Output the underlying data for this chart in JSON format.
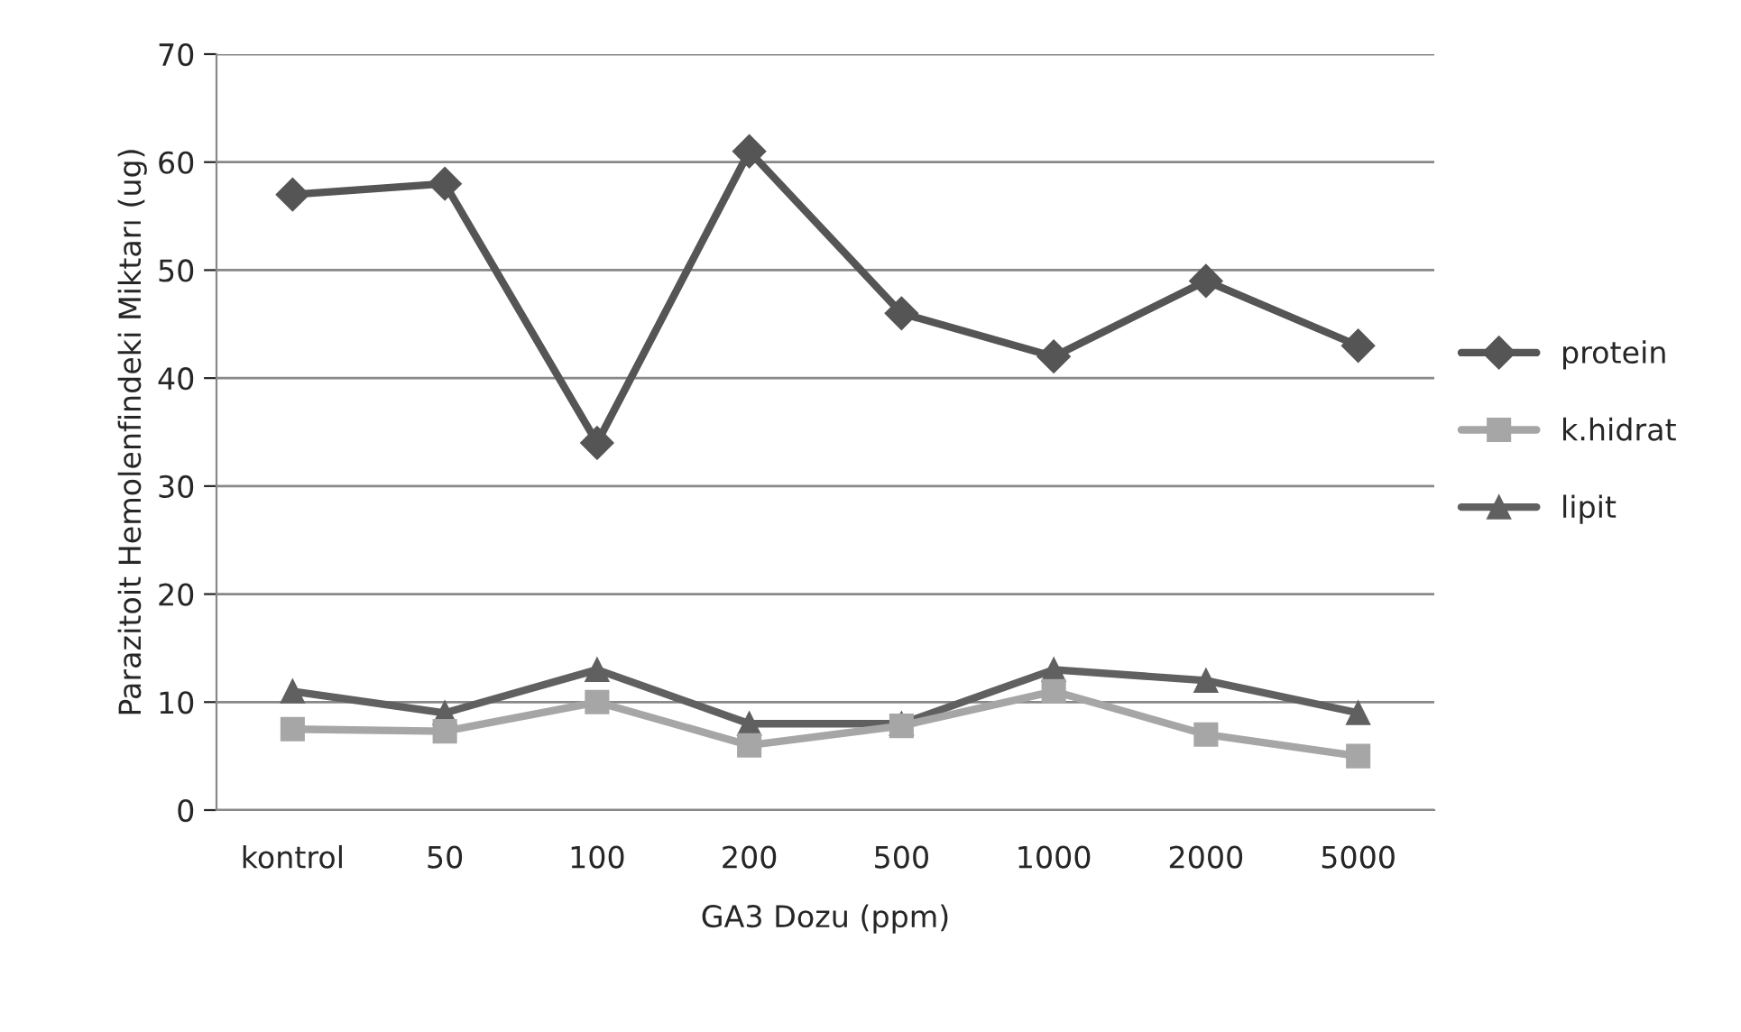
{
  "chart_data": {
    "type": "line",
    "xlabel": "GA3 Dozu (ppm)",
    "ylabel": "Parazitoit Hemolenfindeki Miktarı (ug)",
    "categories": [
      "kontrol",
      "50",
      "100",
      "200",
      "500",
      "1000",
      "2000",
      "5000"
    ],
    "series": [
      {
        "name": "protein",
        "color": "#555555",
        "marker": "diamond",
        "values": [
          57,
          58,
          34,
          61,
          46,
          42,
          49,
          43
        ]
      },
      {
        "name": "k.hidrat",
        "color": "#a6a6a6",
        "marker": "square",
        "values": [
          7.5,
          7.3,
          10,
          6,
          7.8,
          11,
          7,
          5
        ]
      },
      {
        "name": "lipit",
        "color": "#606060",
        "marker": "triangle",
        "values": [
          11,
          9,
          13,
          8,
          8,
          13,
          12,
          9
        ]
      }
    ],
    "ylim": [
      0,
      70
    ],
    "yticks": [
      0,
      10,
      20,
      30,
      40,
      50,
      60,
      70
    ],
    "grid": "y",
    "legend": "right",
    "line_style": "solid"
  }
}
